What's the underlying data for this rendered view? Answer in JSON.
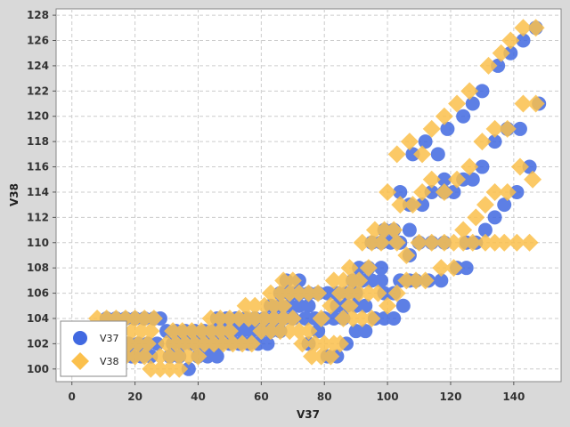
{
  "chart_data": {
    "type": "scatter",
    "title": "",
    "xlabel": "V37",
    "ylabel": "V38",
    "xlim": [
      -5,
      155
    ],
    "ylim": [
      99,
      128.5
    ],
    "xticks": [
      0,
      20,
      40,
      60,
      80,
      100,
      120,
      140
    ],
    "yticks": [
      100,
      102,
      104,
      106,
      108,
      110,
      112,
      114,
      116,
      118,
      120,
      122,
      124,
      126,
      128
    ],
    "grid": true,
    "legend_position": "bottom-left",
    "series": [
      {
        "name": "V37",
        "color": "#4169e1",
        "marker": "circle",
        "points": [
          [
            11,
            104
          ],
          [
            14,
            104
          ],
          [
            17,
            104
          ],
          [
            20,
            104
          ],
          [
            23,
            104
          ],
          [
            26,
            104
          ],
          [
            28,
            104
          ],
          [
            12,
            102
          ],
          [
            15,
            102
          ],
          [
            18,
            102
          ],
          [
            21,
            102
          ],
          [
            24,
            102
          ],
          [
            27,
            102
          ],
          [
            13,
            101
          ],
          [
            16,
            101
          ],
          [
            19,
            101
          ],
          [
            22,
            101
          ],
          [
            25,
            101
          ],
          [
            30,
            103
          ],
          [
            33,
            103
          ],
          [
            36,
            103
          ],
          [
            39,
            103
          ],
          [
            42,
            103
          ],
          [
            45,
            103
          ],
          [
            48,
            103
          ],
          [
            31,
            101
          ],
          [
            34,
            101
          ],
          [
            37,
            100
          ],
          [
            40,
            101
          ],
          [
            43,
            101
          ],
          [
            46,
            101
          ],
          [
            32,
            102
          ],
          [
            35,
            102
          ],
          [
            38,
            102
          ],
          [
            41,
            102
          ],
          [
            44,
            102
          ],
          [
            47,
            102
          ],
          [
            50,
            102
          ],
          [
            53,
            102
          ],
          [
            56,
            102
          ],
          [
            59,
            102
          ],
          [
            62,
            102
          ],
          [
            46,
            104
          ],
          [
            49,
            104
          ],
          [
            52,
            104
          ],
          [
            55,
            104
          ],
          [
            58,
            104
          ],
          [
            61,
            104
          ],
          [
            64,
            104
          ],
          [
            67,
            104
          ],
          [
            70,
            104
          ],
          [
            51,
            103
          ],
          [
            54,
            103
          ],
          [
            57,
            103
          ],
          [
            60,
            103
          ],
          [
            63,
            103
          ],
          [
            66,
            103
          ],
          [
            63,
            105
          ],
          [
            66,
            105
          ],
          [
            69,
            105
          ],
          [
            72,
            105
          ],
          [
            75,
            105
          ],
          [
            66,
            106
          ],
          [
            69,
            106
          ],
          [
            72,
            106
          ],
          [
            75,
            106
          ],
          [
            78,
            106
          ],
          [
            81,
            106
          ],
          [
            84,
            106
          ],
          [
            87,
            106
          ],
          [
            90,
            106
          ],
          [
            68,
            107
          ],
          [
            70,
            106
          ],
          [
            72,
            107
          ],
          [
            74,
            104
          ],
          [
            77,
            104
          ],
          [
            80,
            104
          ],
          [
            83,
            104
          ],
          [
            86,
            104
          ],
          [
            75,
            102
          ],
          [
            78,
            103
          ],
          [
            81,
            101
          ],
          [
            84,
            101
          ],
          [
            87,
            102
          ],
          [
            90,
            103
          ],
          [
            93,
            103
          ],
          [
            84,
            105
          ],
          [
            87,
            105
          ],
          [
            90,
            105
          ],
          [
            93,
            105
          ],
          [
            89,
            107
          ],
          [
            92,
            107
          ],
          [
            95,
            107
          ],
          [
            98,
            107
          ],
          [
            91,
            108
          ],
          [
            94,
            108
          ],
          [
            95,
            110
          ],
          [
            98,
            110
          ],
          [
            101,
            110
          ],
          [
            104,
            110
          ],
          [
            99,
            111
          ],
          [
            102,
            111
          ],
          [
            96,
            104
          ],
          [
            99,
            104
          ],
          [
            102,
            104
          ],
          [
            105,
            105
          ],
          [
            99,
            106
          ],
          [
            102,
            106
          ],
          [
            104,
            107
          ],
          [
            107,
            107
          ],
          [
            109,
            107
          ],
          [
            113,
            107
          ],
          [
            117,
            107
          ],
          [
            98,
            108
          ],
          [
            104,
            107
          ],
          [
            107,
            109
          ],
          [
            110,
            110
          ],
          [
            114,
            110
          ],
          [
            118,
            110
          ],
          [
            122,
            108
          ],
          [
            125,
            108
          ],
          [
            102,
            111
          ],
          [
            107,
            111
          ],
          [
            104,
            114
          ],
          [
            107,
            113
          ],
          [
            111,
            113
          ],
          [
            114,
            114
          ],
          [
            118,
            114
          ],
          [
            121,
            114
          ],
          [
            108,
            117
          ],
          [
            112,
            118
          ],
          [
            116,
            117
          ],
          [
            118,
            115
          ],
          [
            124,
            115
          ],
          [
            127,
            115
          ],
          [
            130,
            116
          ],
          [
            125,
            110
          ],
          [
            128,
            110
          ],
          [
            131,
            111
          ],
          [
            134,
            112
          ],
          [
            137,
            113
          ],
          [
            141,
            114
          ],
          [
            145,
            116
          ],
          [
            119,
            119
          ],
          [
            124,
            120
          ],
          [
            127,
            121
          ],
          [
            130,
            122
          ],
          [
            134,
            118
          ],
          [
            138,
            119
          ],
          [
            142,
            119
          ],
          [
            135,
            124
          ],
          [
            139,
            125
          ],
          [
            143,
            126
          ],
          [
            147,
            127
          ],
          [
            148,
            121
          ]
        ]
      },
      {
        "name": "V38",
        "color": "#fbc04c",
        "marker": "diamond",
        "points": [
          [
            8,
            104
          ],
          [
            11,
            104
          ],
          [
            14,
            104
          ],
          [
            17,
            104
          ],
          [
            20,
            104
          ],
          [
            23,
            104
          ],
          [
            26,
            104
          ],
          [
            10,
            103
          ],
          [
            13,
            103
          ],
          [
            16,
            103
          ],
          [
            19,
            103
          ],
          [
            22,
            103
          ],
          [
            25,
            103
          ],
          [
            12,
            102
          ],
          [
            15,
            102
          ],
          [
            18,
            102
          ],
          [
            21,
            102
          ],
          [
            24,
            102
          ],
          [
            14,
            101
          ],
          [
            17,
            101
          ],
          [
            20,
            101
          ],
          [
            23,
            101
          ],
          [
            25,
            100
          ],
          [
            28,
            100
          ],
          [
            31,
            100
          ],
          [
            34,
            100
          ],
          [
            28,
            101
          ],
          [
            31,
            101
          ],
          [
            34,
            101
          ],
          [
            37,
            101
          ],
          [
            40,
            101
          ],
          [
            30,
            102
          ],
          [
            33,
            102
          ],
          [
            36,
            102
          ],
          [
            39,
            102
          ],
          [
            42,
            102
          ],
          [
            45,
            102
          ],
          [
            48,
            102
          ],
          [
            51,
            102
          ],
          [
            54,
            102
          ],
          [
            57,
            102
          ],
          [
            32,
            103
          ],
          [
            35,
            103
          ],
          [
            38,
            103
          ],
          [
            41,
            103
          ],
          [
            44,
            103
          ],
          [
            47,
            103
          ],
          [
            50,
            103
          ],
          [
            44,
            104
          ],
          [
            47,
            104
          ],
          [
            50,
            104
          ],
          [
            53,
            104
          ],
          [
            56,
            104
          ],
          [
            55,
            105
          ],
          [
            58,
            105
          ],
          [
            61,
            105
          ],
          [
            64,
            105
          ],
          [
            67,
            105
          ],
          [
            58,
            104
          ],
          [
            61,
            104
          ],
          [
            64,
            104
          ],
          [
            67,
            104
          ],
          [
            70,
            104
          ],
          [
            60,
            103
          ],
          [
            63,
            103
          ],
          [
            66,
            103
          ],
          [
            63,
            106
          ],
          [
            66,
            106
          ],
          [
            69,
            106
          ],
          [
            72,
            106
          ],
          [
            75,
            106
          ],
          [
            78,
            106
          ],
          [
            67,
            107
          ],
          [
            70,
            107
          ],
          [
            69,
            103
          ],
          [
            72,
            103
          ],
          [
            75,
            103
          ],
          [
            73,
            102
          ],
          [
            76,
            101
          ],
          [
            79,
            101
          ],
          [
            82,
            101
          ],
          [
            85,
            102
          ],
          [
            77,
            102
          ],
          [
            80,
            102
          ],
          [
            83,
            102
          ],
          [
            79,
            104
          ],
          [
            82,
            105
          ],
          [
            85,
            106
          ],
          [
            88,
            106
          ],
          [
            83,
            107
          ],
          [
            86,
            107
          ],
          [
            89,
            107
          ],
          [
            88,
            108
          ],
          [
            91,
            107
          ],
          [
            94,
            108
          ],
          [
            86,
            104
          ],
          [
            89,
            104
          ],
          [
            92,
            104
          ],
          [
            95,
            104
          ],
          [
            88,
            105
          ],
          [
            91,
            106
          ],
          [
            94,
            106
          ],
          [
            97,
            106
          ],
          [
            100,
            105
          ],
          [
            103,
            106
          ],
          [
            106,
            107
          ],
          [
            109,
            107
          ],
          [
            112,
            107
          ],
          [
            92,
            110
          ],
          [
            95,
            110
          ],
          [
            98,
            110
          ],
          [
            96,
            111
          ],
          [
            99,
            111
          ],
          [
            102,
            111
          ],
          [
            103,
            110
          ],
          [
            106,
            109
          ],
          [
            110,
            110
          ],
          [
            114,
            110
          ],
          [
            118,
            110
          ],
          [
            121,
            110
          ],
          [
            124,
            110
          ],
          [
            127,
            110
          ],
          [
            131,
            110
          ],
          [
            134,
            110
          ],
          [
            137,
            110
          ],
          [
            141,
            110
          ],
          [
            145,
            110
          ],
          [
            100,
            114
          ],
          [
            104,
            113
          ],
          [
            108,
            113
          ],
          [
            111,
            114
          ],
          [
            114,
            115
          ],
          [
            118,
            114
          ],
          [
            103,
            117
          ],
          [
            107,
            118
          ],
          [
            111,
            117
          ],
          [
            114,
            119
          ],
          [
            118,
            120
          ],
          [
            122,
            121
          ],
          [
            126,
            122
          ],
          [
            122,
            115
          ],
          [
            126,
            116
          ],
          [
            117,
            108
          ],
          [
            121,
            108
          ],
          [
            124,
            111
          ],
          [
            128,
            112
          ],
          [
            131,
            113
          ],
          [
            134,
            114
          ],
          [
            138,
            114
          ],
          [
            142,
            116
          ],
          [
            146,
            115
          ],
          [
            130,
            118
          ],
          [
            134,
            119
          ],
          [
            138,
            119
          ],
          [
            132,
            124
          ],
          [
            136,
            125
          ],
          [
            139,
            126
          ],
          [
            143,
            127
          ],
          [
            147,
            127
          ],
          [
            143,
            121
          ],
          [
            147,
            121
          ]
        ]
      }
    ]
  }
}
